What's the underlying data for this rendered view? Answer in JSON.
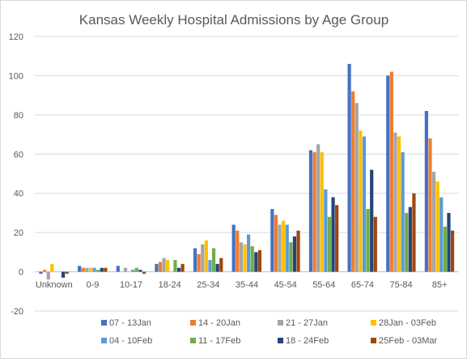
{
  "chart_data": {
    "type": "bar",
    "title": "Kansas Weekly Hospital Admissions by Age Group",
    "xlabel": "",
    "ylabel": "",
    "ylim": [
      -20,
      120
    ],
    "yticks": [
      -20,
      0,
      20,
      40,
      60,
      80,
      100,
      120
    ],
    "grid": true,
    "legend_position": "bottom",
    "categories": [
      "Unknown",
      "0-9",
      "10-17",
      "18-24",
      "25-34",
      "35-44",
      "45-54",
      "55-64",
      "65-74",
      "75-84",
      "85+"
    ],
    "series": [
      {
        "name": "07 - 13Jan",
        "color": "#4472C4",
        "values": [
          -1,
          3,
          3,
          4,
          12,
          24,
          32,
          62,
          106,
          100,
          82
        ]
      },
      {
        "name": "14 - 20Jan",
        "color": "#ED7D31",
        "values": [
          1,
          2,
          0,
          5,
          9,
          21,
          29,
          61,
          92,
          102,
          68
        ]
      },
      {
        "name": "21 - 27Jan",
        "color": "#A5A5A5",
        "values": [
          -4,
          2,
          2,
          7,
          14,
          15,
          24,
          65,
          86,
          71,
          51
        ]
      },
      {
        "name": "28Jan - 03Feb",
        "color": "#FFC000",
        "values": [
          4,
          2,
          0,
          6,
          16,
          14,
          26,
          61,
          72,
          69,
          46
        ]
      },
      {
        "name": "04 - 10Feb",
        "color": "#5B9BD5",
        "values": [
          0,
          2,
          1,
          0,
          6,
          19,
          24,
          42,
          69,
          61,
          38
        ]
      },
      {
        "name": "11 - 17Feb",
        "color": "#70AD47",
        "values": [
          0,
          1,
          2,
          6,
          12,
          13,
          15,
          28,
          32,
          30,
          23
        ]
      },
      {
        "name": "18 - 24Feb",
        "color": "#264478",
        "values": [
          -3,
          2,
          1,
          2,
          4,
          10,
          18,
          38,
          52,
          33,
          30
        ]
      },
      {
        "name": "25Feb - 03Mar",
        "color": "#9E480E",
        "values": [
          -1,
          2,
          -1,
          4,
          7,
          11,
          21,
          34,
          28,
          40,
          21
        ]
      }
    ]
  }
}
